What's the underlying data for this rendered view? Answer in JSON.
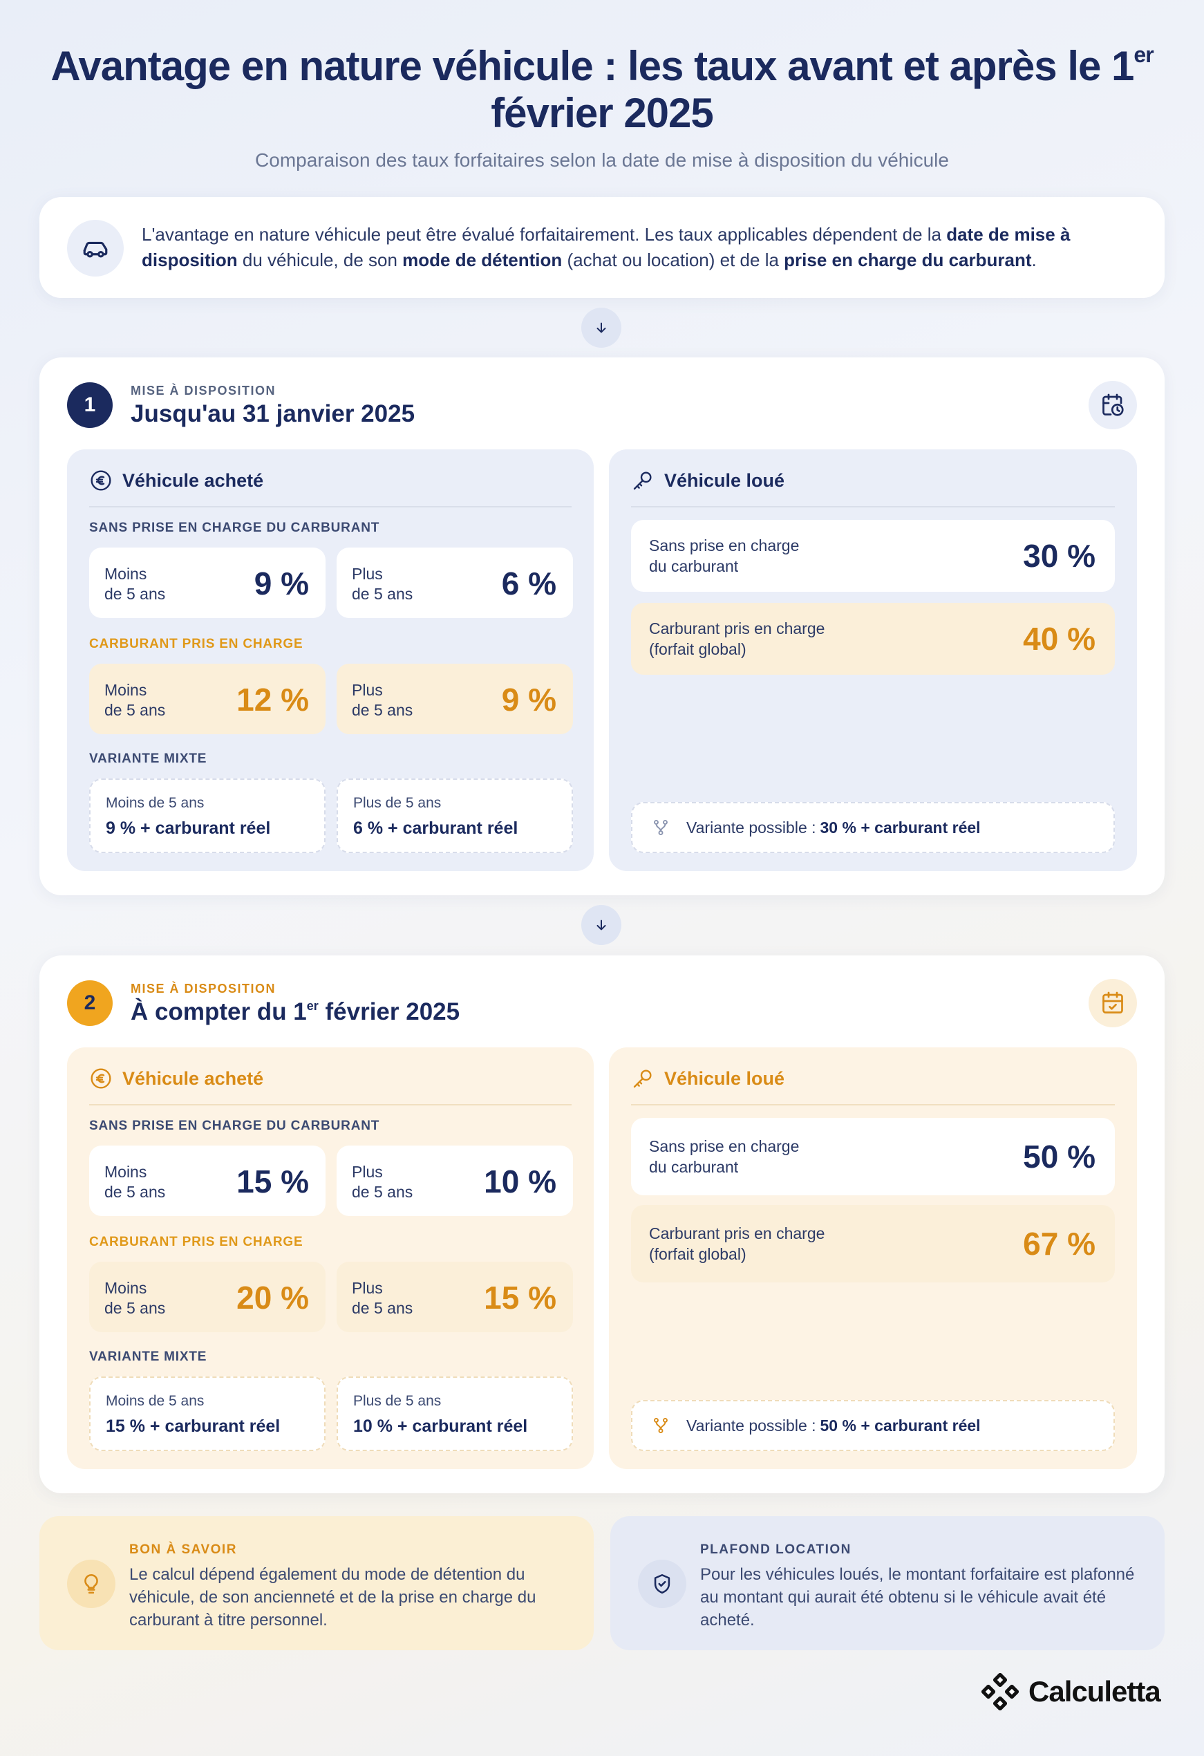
{
  "header": {
    "title_main": "Avantage en nature véhicule : les taux avant et après le 1",
    "title_sup": "er",
    "title_end": "février 2025",
    "subtitle": "Comparaison des taux forfaitaires selon la date de mise à disposition du véhicule"
  },
  "intro": {
    "icon": "car-icon",
    "t1": "L'avantage en nature véhicule peut être évalué forfaitairement. Les taux applicables dépendent de la ",
    "b1": "date de mise à disposition",
    "t2": " du véhicule, de son ",
    "b2": "mode de détention",
    "t3": " (achat ou location) et de la ",
    "b3": "prise en charge du carburant",
    "t4": "."
  },
  "sections": [
    {
      "number": "1",
      "label": "MISE À DISPOSITION",
      "title": "Jusqu'au 31 janvier 2025",
      "icon": "calendar-clock-icon",
      "bought": {
        "title": "Véhicule acheté",
        "no_fuel_label": "SANS PRISE EN CHARGE DU CARBURANT",
        "no_fuel": [
          {
            "label_1": "Moins",
            "label_2": "de 5 ans",
            "value": "9 %"
          },
          {
            "label_1": "Plus",
            "label_2": "de 5 ans",
            "value": "6 %"
          }
        ],
        "fuel_label": "CARBURANT PRIS EN CHARGE",
        "fuel": [
          {
            "label_1": "Moins",
            "label_2": "de 5 ans",
            "value": "12 %"
          },
          {
            "label_1": "Plus",
            "label_2": "de 5 ans",
            "value": "9 %"
          }
        ],
        "mixed_label": "VARIANTE MIXTE",
        "mixed": [
          {
            "label": "Moins de 5 ans",
            "value": "9 % + carburant réel"
          },
          {
            "label": "Plus de 5 ans",
            "value": "6 % + carburant réel"
          }
        ]
      },
      "rented": {
        "title": "Véhicule loué",
        "no_fuel": {
          "label_1": "Sans prise en charge",
          "label_2": "du carburant",
          "value": "30 %"
        },
        "fuel": {
          "label_1": "Carburant pris en charge",
          "label_2": "(forfait global)",
          "value": "40 %"
        },
        "variant_label": "Variante possible :",
        "variant_value": "30 % + carburant réel"
      }
    },
    {
      "number": "2",
      "label": "MISE À DISPOSITION",
      "title_main": "À compter du 1",
      "title_sup": "er",
      "title_end": " février 2025",
      "icon": "calendar-check-icon",
      "bought": {
        "title": "Véhicule acheté",
        "no_fuel_label": "SANS PRISE EN CHARGE DU CARBURANT",
        "no_fuel": [
          {
            "label_1": "Moins",
            "label_2": "de 5 ans",
            "value": "15 %"
          },
          {
            "label_1": "Plus",
            "label_2": "de 5 ans",
            "value": "10 %"
          }
        ],
        "fuel_label": "CARBURANT PRIS EN CHARGE",
        "fuel": [
          {
            "label_1": "Moins",
            "label_2": "de 5 ans",
            "value": "20 %"
          },
          {
            "label_1": "Plus",
            "label_2": "de 5 ans",
            "value": "15 %"
          }
        ],
        "mixed_label": "VARIANTE MIXTE",
        "mixed": [
          {
            "label": "Moins de 5 ans",
            "value": "15 % + carburant réel"
          },
          {
            "label": "Plus de 5 ans",
            "value": "10 % + carburant réel"
          }
        ]
      },
      "rented": {
        "title": "Véhicule loué",
        "no_fuel": {
          "label_1": "Sans prise en charge",
          "label_2": "du carburant",
          "value": "50 %"
        },
        "fuel": {
          "label_1": "Carburant pris en charge",
          "label_2": "(forfait global)",
          "value": "67 %"
        },
        "variant_label": "Variante possible :",
        "variant_value": "50 % + carburant réel"
      }
    }
  ],
  "notes": {
    "good_to_know": {
      "label": "BON À SAVOIR",
      "text": "Le calcul dépend également du mode de détention du véhicule, de son ancienneté et de la prise en charge du carburant à titre personnel.",
      "icon": "lightbulb-icon"
    },
    "rental_cap": {
      "label": "PLAFOND LOCATION",
      "text": "Pour les véhicules loués, le montant forfaitaire est plafonné au montant qui aurait été obtenu si le véhicule avait été acheté.",
      "icon": "shield-check-icon"
    }
  },
  "brand": {
    "name": "Calculetta"
  },
  "colors": {
    "navy": "#1b2a5e",
    "orange": "#e8a21c",
    "orange_text": "#d98b16",
    "blue_panel": "#eaeef8",
    "orange_panel": "#fdf3e4",
    "orange_tile": "#fbefd9"
  }
}
